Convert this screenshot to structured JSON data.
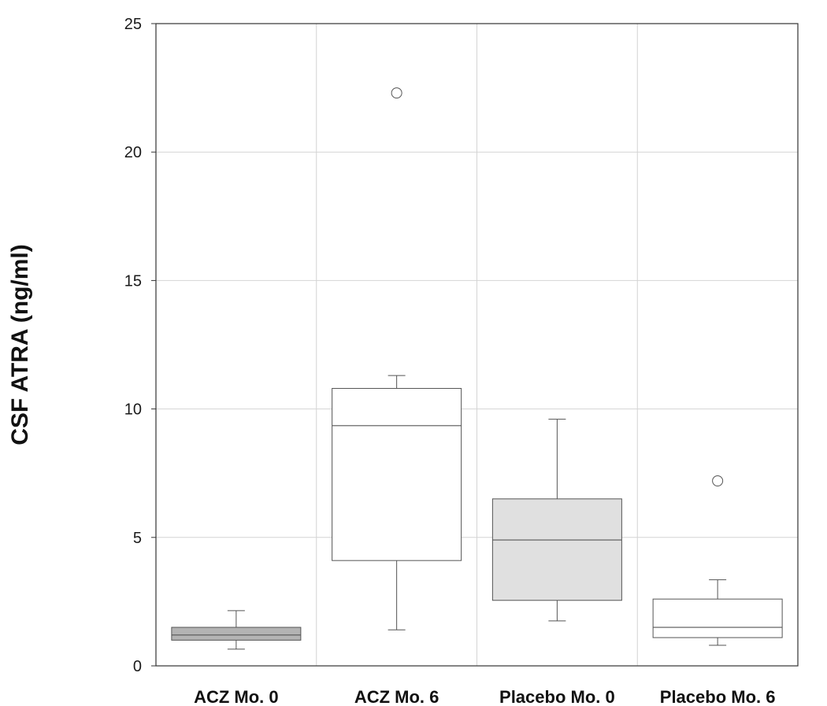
{
  "chart_data": {
    "type": "box",
    "title": "",
    "xlabel": "",
    "ylabel": "CSF ATRA (ng/ml)",
    "ylim": [
      0,
      25
    ],
    "yticks": [
      0,
      5,
      10,
      15,
      20,
      25
    ],
    "ytick_labels": [
      "0",
      "5",
      "10",
      "15",
      "20",
      "25"
    ],
    "grid": true,
    "categories": [
      "ACZ Mo. 0",
      "ACZ Mo. 6",
      "Placebo Mo. 0",
      "Placebo Mo. 6"
    ],
    "boxes": [
      {
        "whisker_low": 0.65,
        "q1": 1.0,
        "median": 1.2,
        "q3": 1.5,
        "whisker_high": 2.15,
        "outliers": [],
        "fill": "#b3b3b3"
      },
      {
        "whisker_low": 1.4,
        "q1": 4.1,
        "median": 9.35,
        "q3": 10.8,
        "whisker_high": 11.3,
        "outliers": [
          22.3
        ],
        "fill": "#ffffff"
      },
      {
        "whisker_low": 1.75,
        "q1": 2.55,
        "median": 4.9,
        "q3": 6.5,
        "whisker_high": 9.6,
        "outliers": [],
        "fill": "#e0e0e0"
      },
      {
        "whisker_low": 0.8,
        "q1": 1.1,
        "median": 1.5,
        "q3": 2.6,
        "whisker_high": 3.35,
        "outliers": [
          7.2
        ],
        "fill": "#ffffff"
      }
    ]
  }
}
